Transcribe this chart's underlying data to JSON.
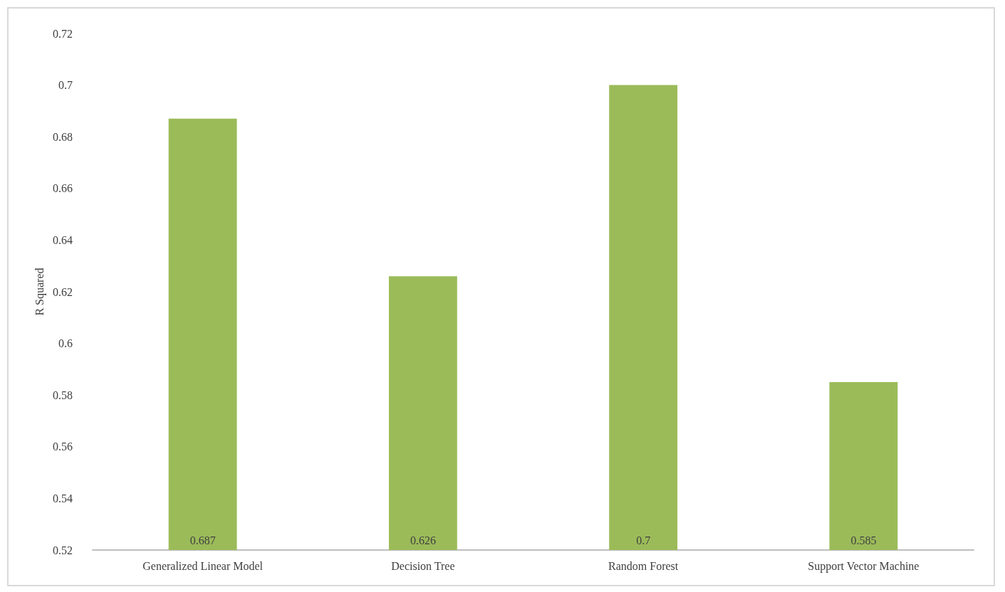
{
  "chart_data": {
    "type": "bar",
    "ylabel": "R Squared",
    "categories": [
      "Generalized Linear Model",
      "Decision Tree",
      "Random Forest",
      "Support Vector Machine"
    ],
    "values": [
      0.687,
      0.626,
      0.7,
      0.585
    ],
    "color": "#9bbb59",
    "ylim": [
      0.52,
      0.72
    ],
    "yticks": [
      0.52,
      0.54,
      0.56,
      0.58,
      0.6,
      0.62,
      0.64,
      0.66,
      0.68,
      0.7,
      0.72
    ],
    "grid": false,
    "data_labels": true
  }
}
